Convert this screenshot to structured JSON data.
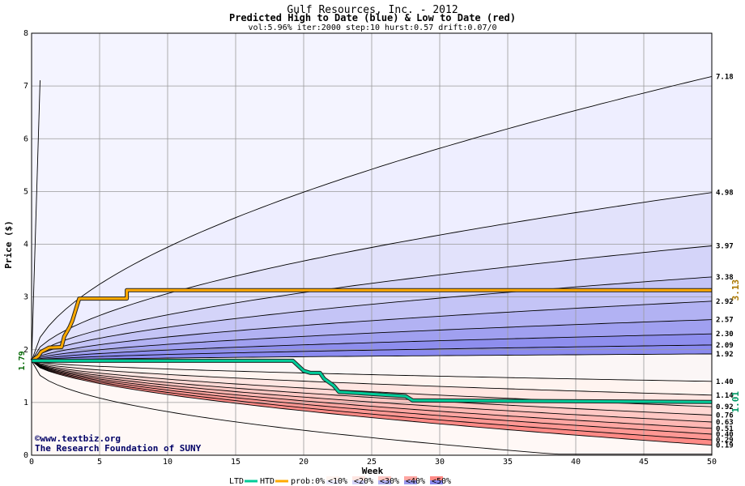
{
  "chart_data": {
    "type": "area",
    "title": "Gulf Resources, Inc. - 2012",
    "subtitle": "Predicted High to Date (blue) &  Low to Date (red)",
    "params": "vol:5.96% iter:2000 step:10 hurst:0.57 drift:0.07/0",
    "xlabel": "Week",
    "ylabel": "Price ($)",
    "xlim": [
      0,
      50
    ],
    "ylim": [
      0,
      8
    ],
    "x_ticks": [
      0,
      5,
      10,
      15,
      20,
      25,
      30,
      35,
      40,
      45,
      50
    ],
    "y_ticks": [
      0,
      1,
      2,
      3,
      4,
      5,
      6,
      7,
      8
    ],
    "grid": true,
    "start_price": 1.79,
    "start_label": "1.79",
    "high_quantiles": [
      {
        "end": 7.18,
        "label": "7.18"
      },
      {
        "end": 4.98,
        "label": "4.98"
      },
      {
        "end": 3.97,
        "label": "3.97"
      },
      {
        "end": 3.38,
        "label": "3.38"
      },
      {
        "end": 2.92,
        "label": "2.92"
      },
      {
        "end": 2.57,
        "label": "2.57"
      },
      {
        "end": 2.3,
        "label": "2.30"
      },
      {
        "end": 2.09,
        "label": "2.09"
      },
      {
        "end": 1.92,
        "label": "1.92"
      }
    ],
    "low_quantiles": [
      {
        "end": 1.4,
        "label": "1.40"
      },
      {
        "end": 1.14,
        "label": "1.14"
      },
      {
        "end": 0.92,
        "label": "0.92"
      },
      {
        "end": 0.76,
        "label": "0.76"
      },
      {
        "end": 0.63,
        "label": "0.63"
      },
      {
        "end": 0.51,
        "label": "0.51"
      },
      {
        "end": 0.4,
        "label": "0.40"
      },
      {
        "end": 0.29,
        "label": "0.29"
      },
      {
        "end": 0.19,
        "label": "0.19"
      }
    ],
    "series": [
      {
        "name": "HTD",
        "color": "#ffaa00",
        "x": [
          0,
          0.5,
          0.7,
          1,
          1.3,
          2.2,
          2.4,
          2.8,
          3.0,
          3.3,
          3.5,
          7.0,
          7.0,
          50
        ],
        "y": [
          1.79,
          1.88,
          1.96,
          2.0,
          2.04,
          2.05,
          2.25,
          2.43,
          2.55,
          2.8,
          2.97,
          2.97,
          3.13,
          3.13
        ]
      },
      {
        "name": "LTD",
        "color": "#00cc99",
        "x": [
          0,
          19.2,
          19.5,
          20,
          20.5,
          21.2,
          21.5,
          22.2,
          22.6,
          24,
          27.5,
          28,
          50
        ],
        "y": [
          1.79,
          1.79,
          1.72,
          1.6,
          1.56,
          1.56,
          1.45,
          1.32,
          1.2,
          1.18,
          1.12,
          1.04,
          1.01
        ]
      }
    ],
    "htd_end_label": "3.13",
    "ltd_end_label": "1.01",
    "high_fills": [
      "#eeeeff",
      "#e2e2fb",
      "#d4d4f9",
      "#c4c4f6",
      "#b2b2f3",
      "#a0a0f0",
      "#8e8eee",
      "#8a8af0"
    ],
    "low_fills": [
      "#fff4f0",
      "#ffe6e2",
      "#ffd8d4",
      "#ffc8c4",
      "#ffb8b4",
      "#ffa6a2",
      "#ff9894",
      "#ff8a86"
    ],
    "htd_color": "#ffaa00",
    "ltd_color": "#00cc99",
    "credit_line1": "©www.textbiz.org",
    "credit_line2": "The Research Foundation of SUNY",
    "legend": [
      {
        "kind": "line",
        "label": "LTD",
        "color": "#00cc99"
      },
      {
        "kind": "line",
        "label": "HTD",
        "color": "#ffaa00"
      },
      {
        "kind": "text",
        "label": "prob:0%"
      },
      {
        "kind": "swatch",
        "label": "<10%",
        "top": "#fff4f0",
        "bottom": "#eeeeff"
      },
      {
        "kind": "swatch",
        "label": "<20%",
        "top": "#ffe6e2",
        "bottom": "#d4d4f9"
      },
      {
        "kind": "swatch",
        "label": "<30%",
        "top": "#ffc8c4",
        "bottom": "#b2b2f3"
      },
      {
        "kind": "swatch",
        "label": "<40%",
        "top": "#ffa6a2",
        "bottom": "#9a9aef"
      },
      {
        "kind": "swatch",
        "label": "<50%",
        "top": "#ff8a86",
        "bottom": "#8a8af0"
      }
    ]
  }
}
